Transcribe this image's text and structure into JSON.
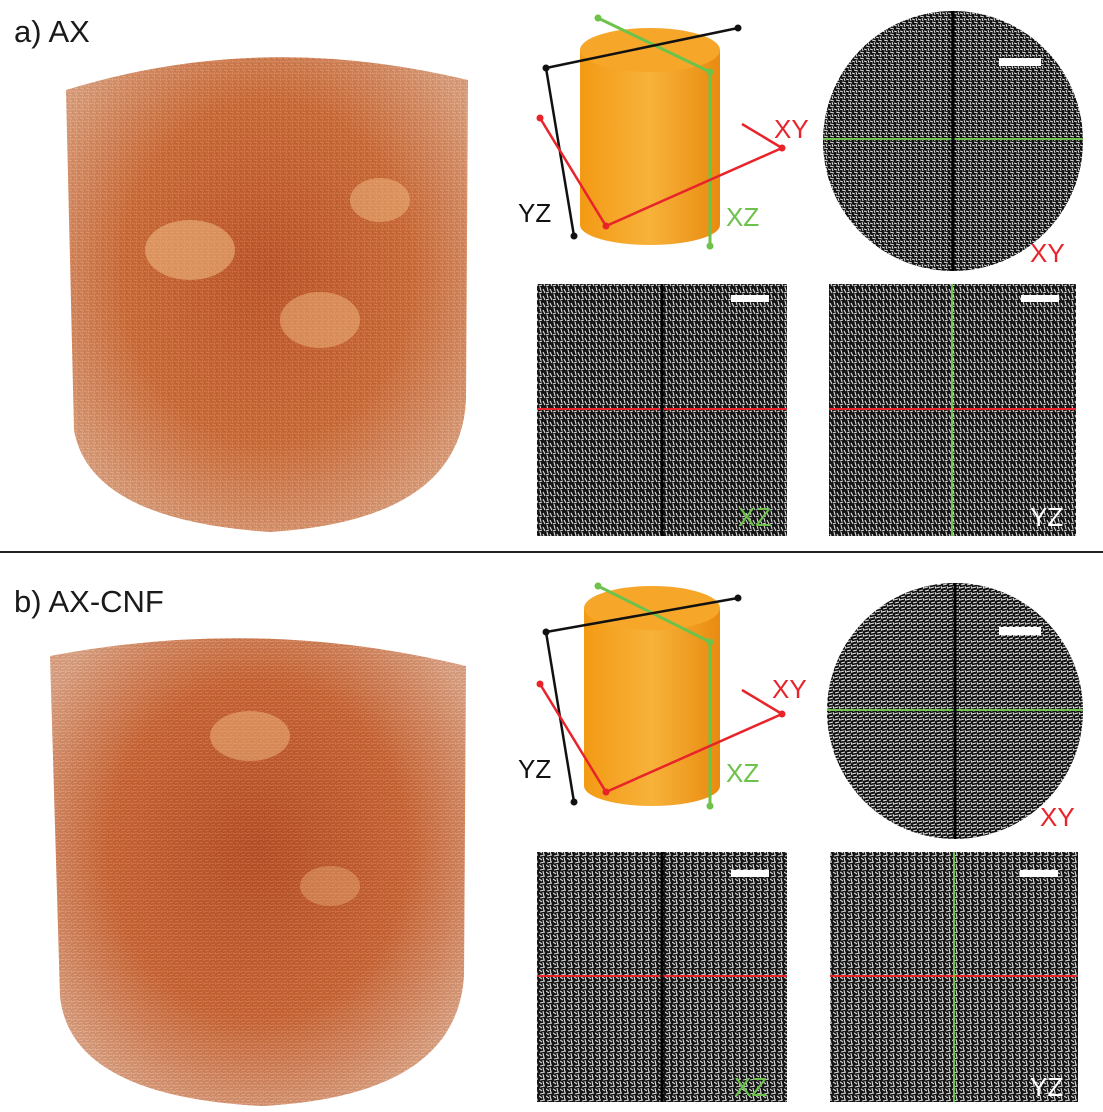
{
  "panels": [
    {
      "id": "a",
      "label": "a) AX",
      "schematic": {
        "xy": "XY",
        "yz": "YZ",
        "xz": "XZ"
      },
      "slices": {
        "xy": "XY",
        "xz": "XZ",
        "yz": "YZ"
      }
    },
    {
      "id": "b",
      "label": "b) AX-CNF",
      "schematic": {
        "xy": "XY",
        "yz": "YZ",
        "xz": "XZ"
      },
      "slices": {
        "xy": "XY",
        "xz": "XZ",
        "yz": "YZ"
      }
    }
  ],
  "colors": {
    "xy_plane": "#e8242a",
    "xz_plane": "#6cc24a",
    "yz_plane": "#111111",
    "cylinder": "#f5a21c",
    "volume": "#d9652a",
    "slice_bg": "#111111",
    "scale_bar": "#ffffff"
  },
  "icons": {
    "scale_bar": "scale-bar-icon"
  }
}
